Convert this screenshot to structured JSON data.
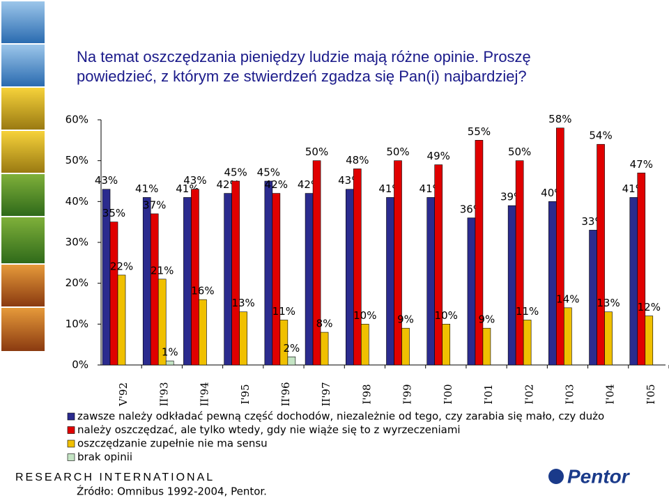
{
  "chart_data": {
    "type": "bar",
    "title": "Na temat oszczędzania pieniędzy ludzie mają różne opinie. Proszę powiedzieć, z którym ze stwierdzeń zgadza się Pan(i) najbardziej?",
    "categories": [
      "V'92",
      "II'93",
      "II'94",
      "I'95",
      "II'96",
      "II'97",
      "I'98",
      "I'99",
      "I'00",
      "I'01",
      "I'02",
      "I'03",
      "I'04",
      "I'05"
    ],
    "series": [
      {
        "name": "zawsze należy odkładać pewną część dochodów, niezależnie od tego, czy zarabia się mało, czy dużo",
        "color": "#2b2b8e",
        "values": [
          43,
          41,
          41,
          42,
          45,
          42,
          43,
          41,
          41,
          36,
          39,
          40,
          33,
          41
        ],
        "value_labels": [
          "43%",
          "41%",
          "41%",
          "42%",
          "45%",
          "42%",
          "43%",
          "41%",
          "41%",
          "36%",
          "39%",
          "40%",
          "33%",
          "41%"
        ]
      },
      {
        "name": "należy oszczędzać, ale tylko wtedy, gdy nie wiąże się to z wyrzeczeniami",
        "color": "#e00000",
        "values": [
          35,
          37,
          43,
          45,
          42,
          50,
          48,
          50,
          49,
          55,
          50,
          58,
          54,
          47
        ],
        "value_labels": [
          "35%",
          "37%",
          "43%",
          "45%",
          "42%",
          "50%",
          "48%",
          "50%",
          "49%",
          "55%",
          "50%",
          "58%",
          "54%",
          "47%"
        ]
      },
      {
        "name": "oszczędzanie zupełnie nie ma sensu",
        "color": "#f0c000",
        "values": [
          22,
          21,
          16,
          13,
          11,
          8,
          10,
          9,
          10,
          9,
          11,
          14,
          13,
          12
        ],
        "value_labels": [
          "22%",
          "21%",
          "16%",
          "13%",
          "11%",
          "8%",
          "10%",
          "9%",
          "10%",
          "9%",
          "11%",
          "14%",
          "13%",
          "12%"
        ]
      },
      {
        "name": "brak opinii",
        "color": "#c4e4c4",
        "values": [
          null,
          1,
          null,
          null,
          2,
          null,
          null,
          null,
          null,
          null,
          null,
          null,
          null,
          null
        ],
        "value_labels": [
          null,
          "1%",
          null,
          null,
          "2%",
          null,
          null,
          null,
          null,
          null,
          null,
          null,
          null,
          null
        ]
      }
    ],
    "ylim": [
      0,
      60
    ],
    "yticks": [
      {
        "value": 0,
        "label": "0%"
      },
      {
        "value": 10,
        "label": "10%"
      },
      {
        "value": 20,
        "label": "20%"
      },
      {
        "value": 30,
        "label": "30%"
      },
      {
        "value": 40,
        "label": "40%"
      },
      {
        "value": 50,
        "label": "50%"
      },
      {
        "value": 60,
        "label": "60%"
      }
    ],
    "grid": false
  },
  "page": {
    "brand": "RESEARCH INTERNATIONAL",
    "logo": "Pentor",
    "source": "Źródło: Omnibus 1992-2004, Pentor."
  }
}
